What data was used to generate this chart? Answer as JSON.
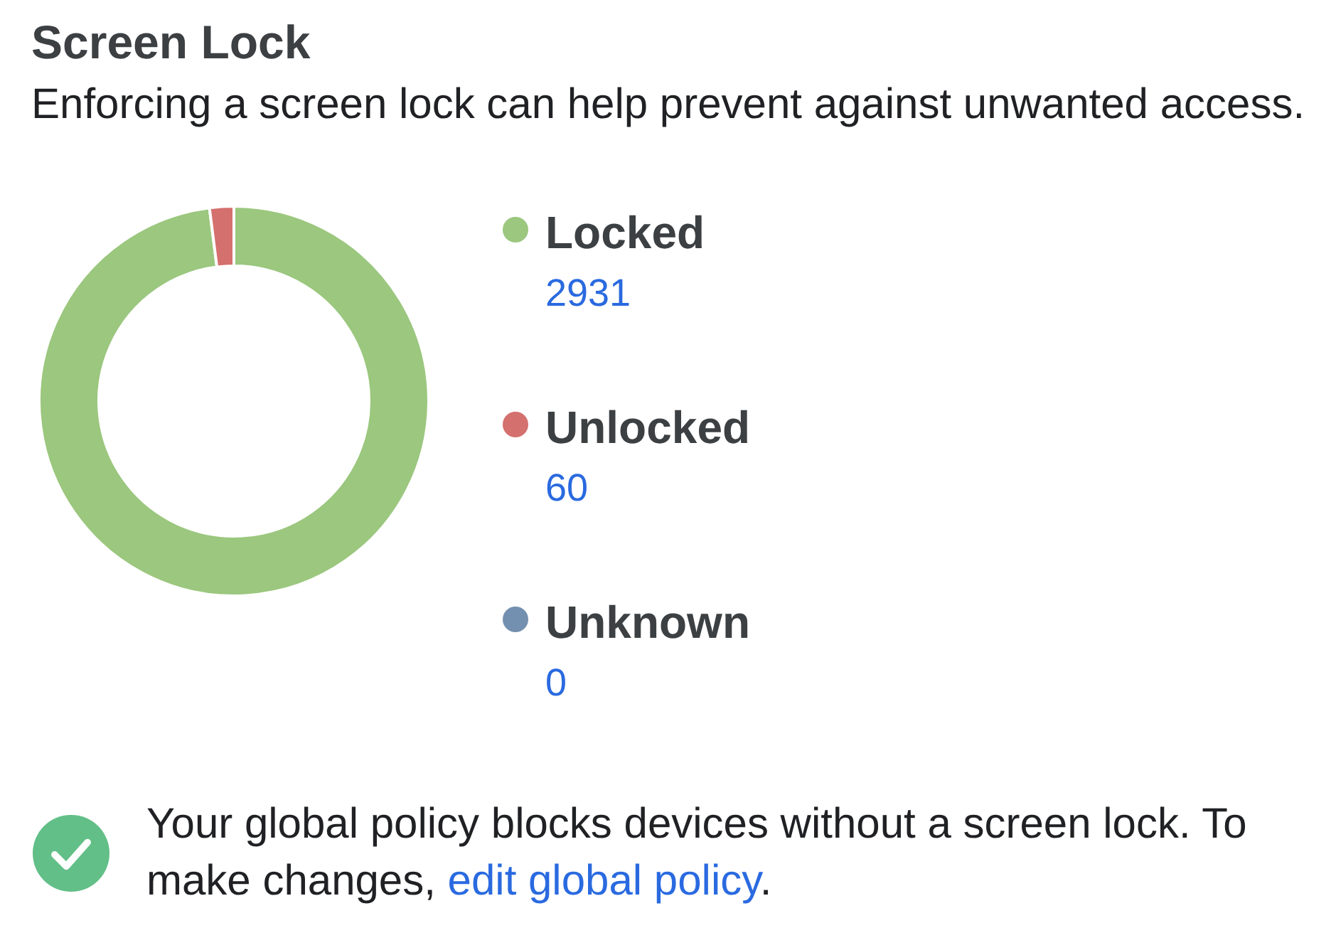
{
  "chart_data": {
    "type": "donut",
    "title": "Screen Lock",
    "subtitle": "Enforcing a screen lock can help prevent against unwanted access.",
    "categories": [
      "Locked",
      "Unlocked",
      "Unknown"
    ],
    "values": [
      2931,
      60,
      0
    ],
    "colors": [
      "#9bc77e",
      "#d4706e",
      "#7490b0"
    ],
    "value_labels": [
      "2931",
      "60",
      "0"
    ],
    "legend": "right",
    "annotations": [
      "Your global policy blocks devices without a screen lock. To make changes,",
      "edit global policy",
      "."
    ]
  }
}
